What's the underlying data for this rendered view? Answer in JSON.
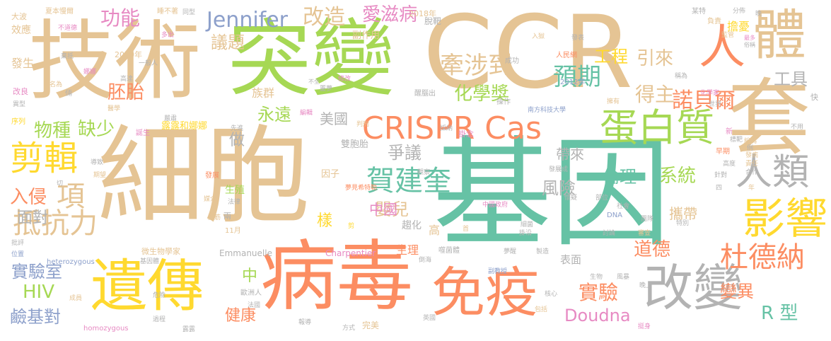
{
  "words": [
    {
      "text": "基因",
      "color": "#66c2a5"
    },
    {
      "text": "細胞",
      "color": "#e5c494"
    },
    {
      "text": "CCR",
      "color": "#e5c494"
    },
    {
      "text": "技術",
      "color": "#e5c494"
    },
    {
      "text": "突變",
      "color": "#a6d854"
    },
    {
      "text": "病毒",
      "color": "#fc8d62"
    },
    {
      "text": "遺傳",
      "color": "#ffd92f"
    },
    {
      "text": "套",
      "color": "#e5c494"
    },
    {
      "text": "體",
      "color": "#e5c494"
    },
    {
      "text": "人",
      "color": "#fc8d62"
    },
    {
      "text": "免疫",
      "color": "#fc8d62"
    },
    {
      "text": "改變",
      "color": "#b3b3b3"
    },
    {
      "text": "CRISPR Cas",
      "color": "#fc8d62"
    },
    {
      "text": "蛋白質",
      "color": "#a6d854"
    },
    {
      "text": "剪輯",
      "color": "#ffd92f"
    },
    {
      "text": "影響",
      "color": "#ffd92f"
    },
    {
      "text": "人類",
      "color": "#b3b3b3"
    },
    {
      "text": "賀建奎",
      "color": "#66c2a5"
    },
    {
      "text": "杜德納",
      "color": "#fc8d62"
    },
    {
      "text": "抵抗力",
      "color": "#e5c494"
    },
    {
      "text": "項",
      "color": "#e5c494"
    },
    {
      "text": "預期",
      "color": "#66c2a5"
    },
    {
      "text": "牽涉到",
      "color": "#e5c494"
    },
    {
      "text": "諾貝爾",
      "color": "#fc8d62"
    },
    {
      "text": "改造",
      "color": "#e5c494"
    },
    {
      "text": "Jennifer",
      "color": "#8da0cb"
    },
    {
      "text": "功能",
      "color": "#e78ac3"
    },
    {
      "text": "愛滋病",
      "color": "#e78ac3"
    },
    {
      "text": "化學獎",
      "color": "#a6d854"
    },
    {
      "text": "工程",
      "color": "#ffd92f"
    },
    {
      "text": "引來",
      "color": "#e5c494"
    },
    {
      "text": "得主",
      "color": "#e5c494"
    },
    {
      "text": "工具",
      "color": "#b3b3b3"
    },
    {
      "text": "議題",
      "color": "#e5c494"
    },
    {
      "text": "缺少",
      "color": "#a6d854"
    },
    {
      "text": "物種",
      "color": "#a6d854"
    },
    {
      "text": "胚胎",
      "color": "#fc8d62"
    },
    {
      "text": "永遠",
      "color": "#a6d854"
    },
    {
      "text": "美國",
      "color": "#b3b3b3"
    },
    {
      "text": "爭議",
      "color": "#b3b3b3"
    },
    {
      "text": "風險",
      "color": "#b3b3b3"
    },
    {
      "text": "倫理",
      "color": "#66c2a5"
    },
    {
      "text": "系統",
      "color": "#a6d854"
    },
    {
      "text": "入侵",
      "color": "#fc8d62"
    },
    {
      "text": "面對",
      "color": "#b3b3b3"
    },
    {
      "text": "嬰兒",
      "color": "#e5c494"
    },
    {
      "text": "中國",
      "color": "#e78ac3"
    },
    {
      "text": "樣",
      "color": "#ffd92f"
    },
    {
      "text": "道德",
      "color": "#fc8d62"
    },
    {
      "text": "變異",
      "color": "#fc8d62"
    },
    {
      "text": "實驗",
      "color": "#fc8d62"
    },
    {
      "text": "Doudna",
      "color": "#e78ac3"
    },
    {
      "text": "R 型",
      "color": "#66c2a5"
    },
    {
      "text": "實驗室",
      "color": "#8da0cb"
    },
    {
      "text": "HIV",
      "color": "#a6d854"
    },
    {
      "text": "鹼基對",
      "color": "#8da0cb"
    },
    {
      "text": "健康",
      "color": "#fc8d62"
    },
    {
      "text": "中",
      "color": "#a6d854"
    },
    {
      "text": "做",
      "color": "#b3b3b3"
    },
    {
      "text": "帶來",
      "color": "#b3b3b3"
    },
    {
      "text": "攜帶",
      "color": "#e5c494"
    },
    {
      "text": "露露和娜娜",
      "color": "#ffd92f"
    },
    {
      "text": "雙胞胎",
      "color": "#b3b3b3"
    },
    {
      "text": "族群",
      "color": "#e5c494"
    },
    {
      "text": "副作用",
      "color": "#e5c494"
    },
    {
      "text": "生殖",
      "color": "#a6d854"
    },
    {
      "text": "生理",
      "color": "#fc8d62"
    },
    {
      "text": "表面",
      "color": "#b3b3b3"
    },
    {
      "text": "高",
      "color": "#e5c494"
    },
    {
      "text": "趨化",
      "color": "#b3b3b3"
    },
    {
      "text": "擔憂",
      "color": "#ffd92f"
    },
    {
      "text": "因子",
      "color": "#e5c494"
    },
    {
      "text": "Emmanuelle",
      "color": "#b3b3b3"
    },
    {
      "text": "Charpentier",
      "color": "#e78ac3"
    },
    {
      "text": "微生物學家",
      "color": "#e5c494"
    },
    {
      "text": "2018年",
      "color": "#e5c494"
    },
    {
      "text": "2020年",
      "color": "#e5c494"
    },
    {
      "text": "2012年",
      "color": "#8da0cb"
    },
    {
      "text": "11月",
      "color": "#e5c494"
    },
    {
      "text": "heterozygous",
      "color": "#8da0cb"
    },
    {
      "text": "homozygous",
      "color": "#e78ac3"
    },
    {
      "text": "南方科技大學",
      "color": "#8da0cb"
    },
    {
      "text": "中國政府",
      "color": "#e78ac3"
    },
    {
      "text": "人民網",
      "color": "#fc8d62"
    },
    {
      "text": "夢見希特勒",
      "color": "#fc8d62"
    },
    {
      "text": "DNA",
      "color": "#8da0cb"
    },
    {
      "text": "脫靶",
      "color": "#b3b3b3"
    },
    {
      "text": "成功",
      "color": "#b3b3b3"
    },
    {
      "text": "發生",
      "color": "#e5c494"
    },
    {
      "text": "效應",
      "color": "#e5c494"
    },
    {
      "text": "大波",
      "color": "#e5c494"
    },
    {
      "text": "夏本慢爾",
      "color": "#e5c494"
    },
    {
      "text": "睡不著",
      "color": "#e5c494"
    },
    {
      "text": "同型",
      "color": "#b3b3b3"
    },
    {
      "text": "不道德",
      "color": "#e78ac3"
    },
    {
      "text": "某特",
      "color": "#b3b3b3"
    },
    {
      "text": "負責",
      "color": "#e5c494"
    },
    {
      "text": "分佈",
      "color": "#b3b3b3"
    },
    {
      "text": "晚",
      "color": "#b3b3b3"
    },
    {
      "text": "監管",
      "color": "#e5c494"
    },
    {
      "text": "最多",
      "color": "#e78ac3"
    },
    {
      "text": "俗稱",
      "color": "#b3b3b3"
    },
    {
      "text": "入獄",
      "color": "#e5c494"
    },
    {
      "text": "發表",
      "color": "#b3b3b3"
    },
    {
      "text": "多出",
      "color": "#e78ac3"
    },
    {
      "text": "一般人",
      "color": "#b3b3b3"
    },
    {
      "text": "棄抵",
      "color": "#b3b3b3"
    },
    {
      "text": "娜娜",
      "color": "#e78ac3"
    },
    {
      "text": "高達",
      "color": "#b3b3b3"
    },
    {
      "text": "名為",
      "color": "#e5c494"
    },
    {
      "text": "改良",
      "color": "#e78ac3"
    },
    {
      "text": "異型",
      "color": "#b3b3b3"
    },
    {
      "text": "倆",
      "color": "#b3b3b3"
    },
    {
      "text": "醫學",
      "color": "#e5c494"
    },
    {
      "text": "修改",
      "color": "#e78ac3"
    },
    {
      "text": "不全",
      "color": "#b3b3b3"
    },
    {
      "text": "噩夢",
      "color": "#b3b3b3"
    },
    {
      "text": "醒腦出",
      "color": "#b3b3b3"
    },
    {
      "text": "操作",
      "color": "#b3b3b3"
    },
    {
      "text": "稱為",
      "color": "#b3b3b3"
    },
    {
      "text": "化學家",
      "color": "#e78ac3"
    },
    {
      "text": "世界",
      "color": "#b3b3b3"
    },
    {
      "text": "擁有",
      "color": "#e5c494"
    },
    {
      "text": "序列",
      "color": "#ffd92f"
    },
    {
      "text": "誕生",
      "color": "#e78ac3"
    },
    {
      "text": "嚴肅",
      "color": "#b3b3b3"
    },
    {
      "text": "先進",
      "color": "#b3b3b3"
    },
    {
      "text": "判刑",
      "color": "#e5c494"
    },
    {
      "text": "採納",
      "color": "#b3b3b3"
    },
    {
      "text": "掛念",
      "color": "#e78ac3"
    },
    {
      "text": "編輯",
      "color": "#e78ac3"
    },
    {
      "text": "發展",
      "color": "#fc8d62"
    },
    {
      "text": "期望",
      "color": "#e5c494"
    },
    {
      "text": "導致",
      "color": "#b3b3b3"
    },
    {
      "text": "切",
      "color": "#b3b3b3"
    },
    {
      "text": "媒介",
      "color": "#e5c494"
    },
    {
      "text": "兩",
      "color": "#b3b3b3"
    },
    {
      "text": "法律",
      "color": "#b3b3b3"
    },
    {
      "text": "腦筋",
      "color": "#e5c494"
    },
    {
      "text": "新",
      "color": "#e78ac3"
    },
    {
      "text": "標靶",
      "color": "#b3b3b3"
    },
    {
      "text": "編碼",
      "color": "#e5c494"
    },
    {
      "text": "例",
      "color": "#b3b3b3"
    },
    {
      "text": "發病",
      "color": "#e5c494"
    },
    {
      "text": "責任",
      "color": "#e5c494"
    },
    {
      "text": "合作",
      "color": "#b3b3b3"
    },
    {
      "text": "早期",
      "color": "#fc8d62"
    },
    {
      "text": "高度",
      "color": "#b3b3b3"
    },
    {
      "text": "針對",
      "color": "#b3b3b3"
    },
    {
      "text": "發展成",
      "color": "#b3b3b3"
    },
    {
      "text": "觀察",
      "color": "#b3b3b3"
    },
    {
      "text": "部位",
      "color": "#b3b3b3"
    },
    {
      "text": "社會",
      "color": "#b3b3b3"
    },
    {
      "text": "懷疑",
      "color": "#b3b3b3"
    },
    {
      "text": "團隊",
      "color": "#b3b3b3"
    },
    {
      "text": "審查",
      "color": "#e5c494"
    },
    {
      "text": "討論",
      "color": "#b3b3b3"
    },
    {
      "text": "細菌",
      "color": "#b3b3b3"
    },
    {
      "text": "掛沿",
      "color": "#b3b3b3"
    },
    {
      "text": "首",
      "color": "#e5c494"
    },
    {
      "text": "剪",
      "color": "#ffd92f"
    },
    {
      "text": "噬菌體",
      "color": "#b3b3b3"
    },
    {
      "text": "夢醒",
      "color": "#b3b3b3"
    },
    {
      "text": "製造",
      "color": "#b3b3b3"
    },
    {
      "text": "特別",
      "color": "#b3b3b3"
    },
    {
      "text": "副教授",
      "color": "#8da0cb"
    },
    {
      "text": "倒海",
      "color": "#b3b3b3"
    },
    {
      "text": "歐洲人",
      "color": "#b3b3b3"
    },
    {
      "text": "成員",
      "color": "#e5c494"
    },
    {
      "text": "危險",
      "color": "#b3b3b3"
    },
    {
      "text": "法國",
      "color": "#b3b3b3"
    },
    {
      "text": "過程",
      "color": "#b3b3b3"
    },
    {
      "text": "露露",
      "color": "#b3b3b3"
    },
    {
      "text": "方式",
      "color": "#b3b3b3"
    },
    {
      "text": "完美",
      "color": "#e5c494"
    },
    {
      "text": "報導",
      "color": "#b3b3b3"
    },
    {
      "text": "英國",
      "color": "#b3b3b3"
    },
    {
      "text": "包括",
      "color": "#e5c494"
    },
    {
      "text": "核心",
      "color": "#b3b3b3"
    },
    {
      "text": "生物",
      "color": "#b3b3b3"
    },
    {
      "text": "風暴",
      "color": "#b3b3b3"
    },
    {
      "text": "晚上",
      "color": "#b3b3b3"
    },
    {
      "text": "挺身",
      "color": "#e78ac3"
    },
    {
      "text": "批評",
      "color": "#b3b3b3"
    },
    {
      "text": "位置",
      "color": "#8da0cb"
    },
    {
      "text": "基因體",
      "color": "#b3b3b3"
    },
    {
      "text": "快",
      "color": "#b3b3b3"
    },
    {
      "text": "不用",
      "color": "#b3b3b3"
    },
    {
      "text": "四",
      "color": "#b3b3b3"
    },
    {
      "text": "年",
      "color": "#e5c494"
    }
  ]
}
